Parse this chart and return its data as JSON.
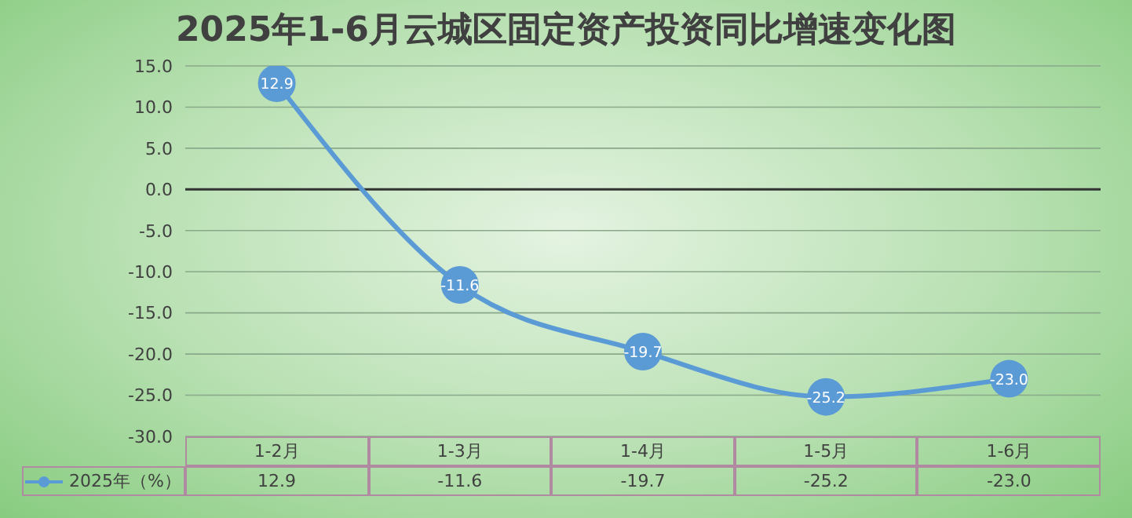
{
  "chart_data": {
    "type": "line",
    "title": "2025年1-6月云城区固定资产投资同比增速变化图",
    "categories": [
      "1-2月",
      "1-3月",
      "1-4月",
      "1-5月",
      "1-6月"
    ],
    "series": [
      {
        "name": "2025年（%）",
        "color": "#5b9bd5",
        "values": [
          12.9,
          -11.6,
          -19.7,
          -25.2,
          -23.0
        ],
        "value_labels": [
          "12.9",
          "-11.6",
          "-19.7",
          "-25.2",
          "-23.0"
        ]
      }
    ],
    "ylim": [
      -30,
      15
    ],
    "yticks": [
      {
        "value": -30,
        "label": "-30.0"
      },
      {
        "value": -25,
        "label": "-25.0"
      },
      {
        "value": -20,
        "label": "-20.0"
      },
      {
        "value": -15,
        "label": "-15.0"
      },
      {
        "value": -10,
        "label": "-10.0"
      },
      {
        "value": -5,
        "label": "-5.0"
      },
      {
        "value": 0,
        "label": "0.0"
      },
      {
        "value": 5,
        "label": "5.0"
      },
      {
        "value": 10,
        "label": "10.0"
      },
      {
        "value": 15,
        "label": "15.0"
      }
    ],
    "grid": "y",
    "legend": "bottom",
    "marker": "circle",
    "ref_lines": [
      {
        "axis": "y",
        "value": 0,
        "color": "#333333"
      }
    ]
  }
}
